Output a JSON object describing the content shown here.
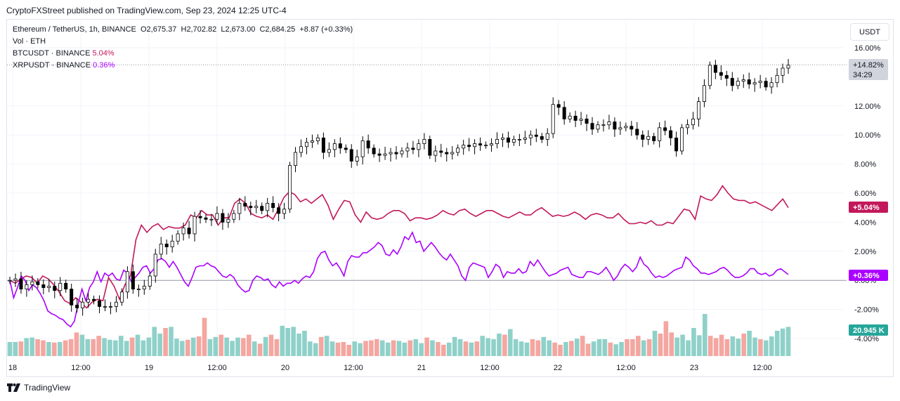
{
  "header": {
    "published": "CryptoFXStreet published on TradingView.com, Sep 23, 2024 12:25 UTC-4"
  },
  "legend": {
    "symbol": "Ethereum / TetherUS, 1h, BINANCE",
    "open": "O2,675.37",
    "high": "H2,702.82",
    "low": "L2,673.00",
    "close": "C2,684.25",
    "change": "+8.87 (+0.33%)",
    "volume": "Vol · ETH",
    "btc_label": "BTCUSDT · BINANCE",
    "btc_value": "5.04%",
    "xrp_label": "XRPUSDT · BINANCE",
    "xrp_value": "0.36%"
  },
  "unit_button": "USDT",
  "footer": {
    "brand": "TradingView"
  },
  "colors": {
    "up": "#26a69a",
    "candle_body_up": "#ffffff",
    "candle_body_down": "#000000",
    "vol_up": "#8fd1c9",
    "vol_down": "#f4a6a0",
    "btc": "#c2185b",
    "xrp": "#aa00ff",
    "grid": "#f0f3fa"
  },
  "chart_data": {
    "type": "line",
    "title": "Ethereum / TetherUS, 1h, BINANCE",
    "y_unit": "%",
    "ylim": [
      -5,
      16.5
    ],
    "y_ticks": [
      "16.00%",
      "12.00%",
      "10.00%",
      "8.00%",
      "6.00%",
      "4.00%",
      "2.00%",
      "0.00%",
      "-2.00%",
      "-4.00%"
    ],
    "y_tick_values": [
      16,
      12,
      10,
      8,
      6,
      4,
      2,
      0,
      -2,
      -4
    ],
    "x_ticks": [
      "18",
      "12:00",
      "19",
      "12:00",
      "20",
      "12:00",
      "21",
      "12:00",
      "22",
      "12:00",
      "23",
      "12:00"
    ],
    "x_tick_hours": [
      0,
      12,
      24,
      36,
      48,
      60,
      72,
      84,
      96,
      108,
      120,
      132
    ],
    "hour_start": -6.5,
    "last_labels": {
      "eth": "+14.82%",
      "countdown": "34:29",
      "btc": "+5.04%",
      "xrp": "+0.36%",
      "volume": "20.945 K"
    },
    "eth_candles_close": [
      0.0,
      0.1,
      -0.6,
      -0.3,
      -0.1,
      -0.3,
      -0.5,
      -0.4,
      -0.7,
      -0.2,
      -0.6,
      -1.7,
      -1.9,
      -1.5,
      -1.3,
      -1.4,
      -1.8,
      -1.8,
      -1.8,
      -1.5,
      -0.8,
      0.6,
      -0.6,
      -0.6,
      -0.4,
      0.3,
      1.8,
      2.5,
      2.3,
      2.7,
      3.2,
      3.6,
      3.2,
      4.4,
      4.3,
      4.2,
      4.2,
      4.6,
      4.0,
      4.2,
      4.6,
      5.3,
      5.1,
      5.0,
      5.1,
      4.8,
      5.3,
      5.0,
      4.6,
      4.9,
      7.9,
      8.8,
      9.2,
      9.5,
      9.6,
      9.8,
      8.8,
      9.0,
      9.4,
      9.1,
      9.0,
      8.2,
      8.5,
      9.6,
      9.1,
      8.7,
      8.6,
      8.7,
      8.8,
      8.7,
      8.9,
      9.1,
      9.0,
      9.4,
      9.7,
      8.6,
      8.9,
      8.8,
      8.7,
      8.8,
      9.1,
      9.3,
      9.2,
      9.4,
      9.3,
      9.3,
      9.4,
      9.7,
      9.8,
      9.5,
      9.7,
      9.7,
      9.8,
      10.0,
      9.9,
      9.7,
      10.1,
      12.1,
      11.9,
      11.1,
      11.3,
      11.0,
      11.1,
      10.8,
      10.4,
      10.7,
      10.7,
      10.9,
      10.4,
      10.5,
      10.6,
      10.4,
      10.0,
      9.7,
      9.9,
      9.6,
      10.5,
      10.3,
      9.8,
      8.9,
      10.5,
      10.7,
      11.1,
      12.3,
      13.4,
      14.8,
      14.3,
      14.1,
      13.9,
      13.4,
      13.7,
      13.8,
      13.5,
      13.6,
      13.7,
      13.3,
      13.6,
      14.1,
      14.6,
      14.8
    ],
    "eth_candles_open": [
      0.0,
      0.0,
      0.1,
      -0.6,
      -0.3,
      -0.1,
      -0.3,
      -0.5,
      -0.4,
      -0.7,
      -0.2,
      -0.6,
      -1.7,
      -1.9,
      -1.5,
      -1.3,
      -1.4,
      -1.8,
      -1.8,
      -1.8,
      -1.5,
      -0.8,
      0.6,
      -0.6,
      -0.6,
      -0.4,
      0.3,
      1.8,
      2.5,
      2.3,
      2.7,
      3.2,
      3.6,
      3.2,
      4.4,
      4.3,
      4.2,
      4.2,
      4.6,
      4.0,
      4.2,
      4.6,
      5.3,
      5.1,
      5.0,
      5.1,
      4.8,
      5.3,
      5.0,
      4.6,
      4.9,
      7.9,
      8.8,
      9.2,
      9.5,
      9.6,
      9.8,
      8.8,
      9.0,
      9.4,
      9.1,
      9.0,
      8.2,
      8.5,
      9.6,
      9.1,
      8.7,
      8.6,
      8.7,
      8.8,
      8.7,
      8.9,
      9.1,
      9.0,
      9.4,
      9.7,
      8.6,
      8.9,
      8.8,
      8.7,
      8.8,
      9.1,
      9.3,
      9.2,
      9.4,
      9.3,
      9.3,
      9.4,
      9.7,
      9.8,
      9.5,
      9.7,
      9.7,
      9.8,
      10.0,
      9.9,
      9.7,
      10.1,
      12.1,
      11.9,
      11.1,
      11.3,
      11.0,
      11.1,
      10.8,
      10.4,
      10.7,
      10.7,
      10.9,
      10.4,
      10.5,
      10.6,
      10.4,
      10.0,
      9.7,
      9.9,
      9.6,
      10.5,
      10.3,
      9.8,
      8.9,
      10.5,
      10.7,
      11.1,
      12.3,
      13.4,
      14.8,
      14.3,
      14.1,
      13.9,
      13.4,
      13.7,
      13.8,
      13.5,
      13.6,
      13.7,
      13.3,
      13.6,
      14.1,
      14.6
    ],
    "btc_series": [
      0.0,
      -0.2,
      0.1,
      0.3,
      0.2,
      -0.2,
      0.3,
      0.1,
      -0.3,
      -0.8,
      -1.4,
      -1.6,
      -1.2,
      -1.5,
      -1.9,
      -1.5,
      -1.3,
      -1.4,
      0.2,
      -0.4,
      -1.3,
      -0.3,
      0.3,
      2.8,
      3.8,
      3.3,
      3.7,
      3.9,
      3.5,
      3.7,
      3.6,
      3.6,
      3.8,
      4.5,
      4.3,
      4.8,
      4.5,
      4.5,
      3.8,
      4.3,
      4.3,
      5.3,
      5.6,
      5.3,
      4.6,
      4.4,
      4.3,
      4.5,
      4.2,
      4.9,
      5.7,
      6.1,
      5.9,
      5.4,
      5.6,
      5.3,
      5.6,
      5.9,
      5.2,
      4.2,
      4.9,
      5.5,
      5.4,
      4.5,
      4.0,
      4.7,
      4.3,
      4.2,
      4.3,
      4.6,
      4.8,
      4.8,
      4.6,
      4.1,
      4.3,
      4.3,
      4.2,
      4.3,
      4.5,
      4.8,
      4.6,
      4.5,
      4.8,
      4.9,
      4.6,
      4.4,
      4.6,
      4.8,
      4.8,
      4.6,
      4.4,
      4.3,
      4.5,
      4.7,
      4.5,
      4.5,
      4.8,
      5.0,
      4.7,
      4.4,
      4.5,
      4.4,
      4.5,
      4.7,
      4.5,
      4.2,
      4.5,
      4.6,
      4.5,
      4.3,
      4.3,
      4.6,
      4.2,
      3.9,
      3.9,
      4.0,
      3.9,
      4.1,
      3.8,
      3.8,
      4.0,
      3.9,
      4.4,
      4.9,
      4.8,
      4.2,
      5.8,
      5.6,
      5.5,
      5.9,
      6.5,
      6.0,
      5.6,
      5.5,
      5.5,
      5.3,
      5.4,
      5.2,
      5.0,
      4.8,
      5.2,
      5.6,
      5.0
    ],
    "xrp_series": [
      0.0,
      -1.2,
      -0.5,
      0.3,
      0.0,
      -0.7,
      -0.3,
      -0.5,
      -0.9,
      -1.4,
      -2.1,
      -2.3,
      -2.4,
      -2.6,
      -2.7,
      -3.0,
      -3.2,
      -2.8,
      -1.6,
      -0.6,
      -1.4,
      -0.5,
      -0.1,
      0.6,
      -0.1,
      0.5,
      0.3,
      0.5,
      0.1,
      0.0,
      0.7,
      0.5,
      -0.1,
      0.2,
      0.5,
      0.9,
      1.0,
      0.5,
      0.8,
      1.4,
      1.5,
      1.3,
      0.9,
      1.3,
      0.9,
      0.4,
      -0.1,
      -0.4,
      0.2,
      0.9,
      1.0,
      1.0,
      1.2,
      1.0,
      0.9,
      0.6,
      0.3,
      0.2,
      0.4,
      0.2,
      -0.3,
      -0.6,
      -0.8,
      -0.7,
      0.0,
      0.3,
      0.2,
      0.0,
      0.1,
      -0.3,
      -0.5,
      -0.1,
      -0.4,
      -0.2,
      -0.2,
      0.0,
      -0.2,
      0.1,
      0.3,
      0.2,
      0.6,
      1.5,
      1.9,
      2.0,
      1.4,
      1.0,
      1.2,
      0.8,
      0.3,
      1.3,
      1.7,
      1.6,
      1.6,
      1.9,
      1.9,
      2.1,
      2.3,
      2.6,
      2.4,
      1.8,
      1.7,
      2.1,
      1.8,
      2.3,
      3.0,
      2.8,
      3.3,
      2.6,
      2.7,
      2.0,
      2.3,
      2.6,
      2.3,
      1.9,
      1.6,
      1.4,
      1.8,
      1.4,
      1.0,
      0.3,
      0.0,
      0.9,
      1.2,
      1.1,
      1.0,
      0.9,
      0.2,
      0.6,
      1.1,
      0.9,
      0.2,
      0.6,
      0.5,
      0.5,
      0.8,
      0.5,
      0.6,
      1.3,
      1.0,
      1.4,
      1.0,
      0.6,
      0.3,
      0.4,
      0.5,
      0.7,
      0.8,
      0.9,
      0.4,
      0.3,
      0.2,
      0.2,
      0.6,
      0.6,
      0.5,
      0.4,
      0.6,
      0.9,
      0.5,
      0.0,
      0.3,
      0.8,
      1.1,
      0.9,
      0.6,
      0.9,
      1.6,
      1.1,
      0.9,
      0.5,
      0.2,
      0.3,
      0.2,
      0.3,
      0.5,
      0.7,
      0.8,
      0.9,
      1.6,
      1.4,
      1.0,
      0.8,
      0.5,
      0.5,
      0.4,
      0.5,
      0.6,
      0.8,
      0.9,
      0.7,
      0.4,
      0.2,
      0.2,
      0.3,
      0.5,
      0.8,
      0.8,
      0.5,
      0.4,
      0.5,
      0.3,
      0.4,
      0.7,
      0.8,
      0.6,
      0.4
    ],
    "volume_relative": [
      0.25,
      0.25,
      0.26,
      0.32,
      0.33,
      0.3,
      0.28,
      0.25,
      0.24,
      0.25,
      0.28,
      0.3,
      0.42,
      0.38,
      0.3,
      0.3,
      0.36,
      0.32,
      0.29,
      0.28,
      0.36,
      0.27,
      0.33,
      0.38,
      0.28,
      0.33,
      0.52,
      0.4,
      0.5,
      0.52,
      0.31,
      0.27,
      0.29,
      0.33,
      0.35,
      0.68,
      0.3,
      0.34,
      0.38,
      0.33,
      0.27,
      0.33,
      0.32,
      0.38,
      0.26,
      0.22,
      0.34,
      0.38,
      0.3,
      0.54,
      0.5,
      0.52,
      0.4,
      0.45,
      0.26,
      0.23,
      0.34,
      0.36,
      0.26,
      0.24,
      0.25,
      0.2,
      0.26,
      0.23,
      0.27,
      0.28,
      0.3,
      0.28,
      0.24,
      0.28,
      0.27,
      0.24,
      0.28,
      0.3,
      0.23,
      0.33,
      0.28,
      0.25,
      0.2,
      0.24,
      0.34,
      0.3,
      0.26,
      0.24,
      0.26,
      0.36,
      0.32,
      0.3,
      0.4,
      0.38,
      0.48,
      0.3,
      0.26,
      0.24,
      0.3,
      0.28,
      0.34,
      0.28,
      0.24,
      0.2,
      0.25,
      0.27,
      0.31,
      0.36,
      0.22,
      0.26,
      0.3,
      0.3,
      0.24,
      0.21,
      0.25,
      0.3,
      0.3,
      0.36,
      0.28,
      0.3,
      0.45,
      0.4,
      0.62,
      0.42,
      0.33,
      0.38,
      0.28,
      0.5,
      0.37,
      0.75,
      0.36,
      0.32,
      0.38,
      0.3,
      0.35,
      0.31,
      0.4,
      0.45,
      0.33,
      0.3,
      0.28,
      0.35,
      0.45,
      0.49,
      0.52
    ]
  }
}
